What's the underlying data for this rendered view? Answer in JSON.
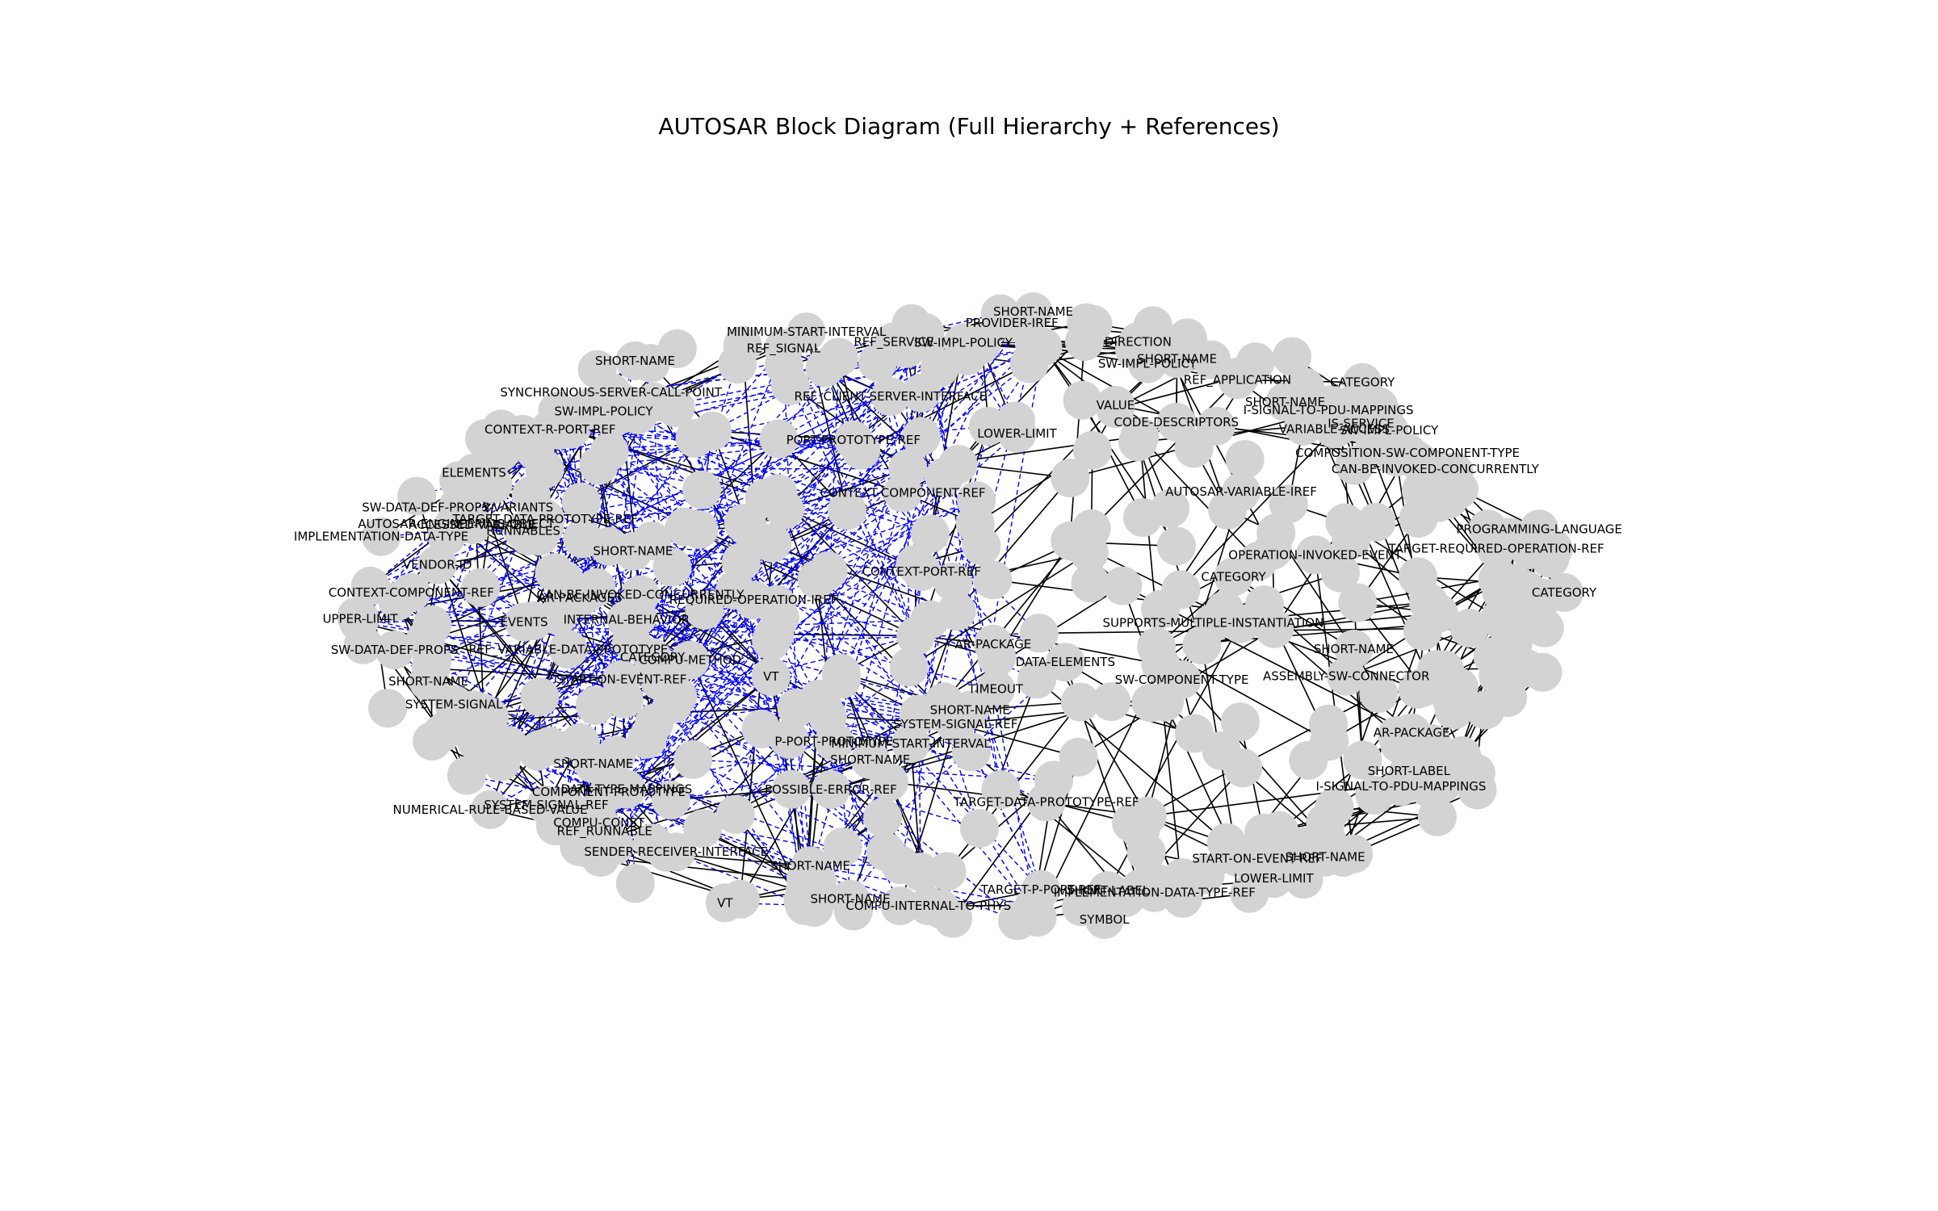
{
  "title": "AUTOSAR Block Diagram (Full Hierarchy + References)",
  "colors": {
    "background": "#ffffff",
    "node": "#d3d3d3",
    "hierarchy_edge": "#000000",
    "reference_edge": "#0000ff",
    "label": "#000000"
  },
  "labels": [
    "SHORT-NAME",
    "SW-IMPL-POLICY",
    "CATEGORY",
    "SHORT-LABEL",
    "REF_SERVICE",
    "I-SIGNAL-TO-PDU-MAPPINGS",
    "SHORT-NAME",
    "CAN-BE-INVOKED-CONCURRENTLY",
    "REF_CLIENT-SERVER-INTERFACE",
    "LOWER-LIMIT",
    "VT",
    "REF_VARIABLE-DATA-PROTOTYPE",
    "SHORT-LABEL",
    "SHORT-NAME",
    "SHORT-NAME",
    "REF_SIGNAL",
    "SYSTEM-SIGNAL",
    "SHORT-NAME",
    "COMPU-METHOD",
    "TARGET-DATA-PROTOTYPE-REF",
    "TIMEOUT",
    "CONTEXT-COMPONENT-REF",
    "SW-IMPL-POLICY",
    "VALUE",
    "TARGET-DATA-PROTOTYPE-REF",
    "SYMBOL",
    "SHORT-NAME",
    "DIRECTION",
    "REF_RUNNABLE",
    "VENDOR-ID",
    "START-ON-EVENT-REF",
    "CAN-BE-INVOKED-CONCURRENTLY",
    "SYSTEM-SIGNAL-REF",
    "SHORT-NAME",
    "EVENTS",
    "TARGET-P-PORT-REF",
    "CONTEXT-PORT-REF",
    "UPPER-LIMIT",
    "SW-DATA-DEF-PROPS",
    "SHORT-NAME",
    "CONTEXT-COMPONENT-REF",
    "REF_APPLICATION",
    "POSSIBLE-ERROR-REF",
    "SHORT-NAME",
    "CATEGORY",
    "AUTOSAR-ENGINEERING-OBJECT",
    "COMPONENT-PROTOTYPE",
    "AR-PACKAGE",
    "CODE-DESCRIPTORS",
    "SHORT-NAME",
    "SW-DATA-DEF-PROPS-VARIANTS",
    "MINIMUM-START-INTERVAL",
    "IS-SERVICE",
    "COMPU-CONST",
    "VT",
    "SHORT-NAME",
    "SW-IMPL-POLICY",
    "TARGET-REQUIRED-OPERATION-REF",
    "AR-PACKAGES",
    "PORT-PROTOTYPE-REF",
    "SHORT-NAME",
    "CATEGORY",
    "SHORT-NAME",
    "PROGRAMMING-LANGUAGE",
    "CONTEXT-R-PORT-REF",
    "LOWER-LIMIT",
    "CATEGORY",
    "SW-COMPONENT-TYPE",
    "SUPPORTS-MULTIPLE-INSTANTIATION",
    "MINIMUM-START-INTERVAL",
    "SW-IMPL-POLICY",
    "AR-PACKAGE",
    "ASSEMBLY-SW-CONNECTOR",
    "P-PORT-PROTOTYPE",
    "VARIABLE-ACCESS",
    "PROVIDER-IREF",
    "SYSTEM-SIGNAL-REF",
    "START-ON-EVENT-REF",
    "I-SIGNAL-TO-PDU-MAPPINGS",
    "IMPLEMENTATION-DATA-TYPE-REF",
    "DATA-TYPE-MAPPINGS",
    "COMPOSITION-SW-COMPONENT-TYPE",
    "INTERNAL-BEHAVIOR",
    "ACCESSED-VARIABLE",
    "RUNNABLES",
    "SENDER-RECEIVER-INTERFACE",
    "DATA-ELEMENTS",
    "SYNCHRONOUS-SERVER-CALL-POINT",
    "COMPU-INTERNAL-TO-PHYS",
    "ELEMENTS",
    "IMPLEMENTATION-DATA-TYPE",
    "NUMERICAL-RULE-BASED-VALUE",
    "AUTOSAR-VARIABLE-IREF",
    "REQUIRED-OPERATION-IREF",
    "OPERATION-INVOKED-EVENT"
  ]
}
